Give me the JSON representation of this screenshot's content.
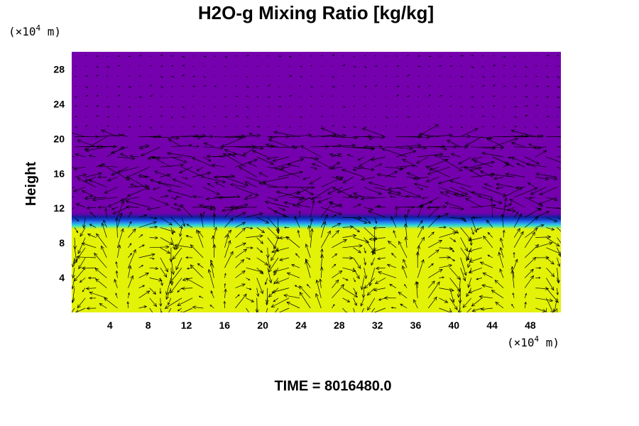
{
  "chart_data": {
    "type": "heatmap",
    "title": "H2O-g Mixing Ratio [kg/kg]",
    "ylabel": "Height",
    "x_unit_prefix": "(×10",
    "x_unit_exp": "4",
    "x_unit_suffix": " m)",
    "y_unit_prefix": "(×10",
    "y_unit_exp": "4",
    "y_unit_suffix": " m)",
    "x_ticks": [
      "4",
      "8",
      "12",
      "16",
      "20",
      "24",
      "28",
      "32",
      "36",
      "40",
      "44",
      "48"
    ],
    "y_ticks": [
      "4",
      "8",
      "12",
      "16",
      "20",
      "24",
      "28"
    ],
    "xlim": [
      0,
      51.2
    ],
    "ylim": [
      0,
      30
    ],
    "footer": "TIME = 8016480.0",
    "field_layers": [
      {
        "name": "moist-lower",
        "y_range": [
          0,
          10
        ],
        "color": "#e3f207"
      },
      {
        "name": "transition",
        "y_range": [
          9.5,
          11.5
        ],
        "colors": [
          "#e3f207",
          "#2fd9d0",
          "#2b8bef",
          "#1446d6",
          "#141e9c",
          "#5a09a8",
          "#7400ad"
        ]
      },
      {
        "name": "dry-upper",
        "y_range": [
          11.5,
          30
        ],
        "color": "#7500ad"
      }
    ],
    "vector_overlay": true,
    "vector_color": "#000000"
  }
}
